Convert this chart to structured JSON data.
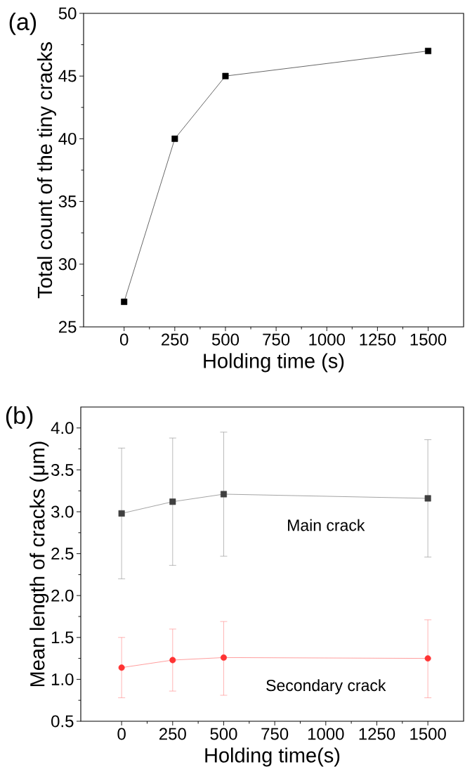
{
  "chart_data": [
    {
      "type": "line",
      "xlabel": "Holding time (s)",
      "ylabel": "Total count of the tiny cracks",
      "annotations": [
        "(a)"
      ],
      "x": [
        0,
        250,
        500,
        1500
      ],
      "marker": "square",
      "line_style": "solid",
      "grid": false,
      "series": [
        {
          "color": "#000000",
          "values": [
            27,
            40,
            45,
            47
          ]
        }
      ],
      "xlim": [
        -200,
        1675
      ],
      "ylim": [
        25,
        50
      ],
      "xticks": [
        0,
        250,
        500,
        750,
        1000,
        1250,
        1500
      ],
      "yticks": [
        25,
        30,
        35,
        40,
        45,
        50
      ]
    },
    {
      "type": "line",
      "xlabel": "Holding time(s)",
      "ylabel": "Mean length of cracks (μm)",
      "annotations": [
        "(b)"
      ],
      "x": [
        0,
        250,
        500,
        1500
      ],
      "line_style": "solid",
      "grid": false,
      "series": [
        {
          "name": "Main crack",
          "color": "#404040",
          "marker": "square",
          "values": [
            2.98,
            3.12,
            3.21,
            3.16
          ],
          "errors": [
            [
              2.2,
              3.76
            ],
            [
              2.36,
              3.88
            ],
            [
              2.47,
              3.95
            ],
            [
              2.46,
              3.86
            ]
          ]
        },
        {
          "name": "Secondary crack",
          "color": "#ff3333",
          "marker": "circle",
          "values": [
            1.14,
            1.23,
            1.26,
            1.25
          ],
          "errors": [
            [
              0.78,
              1.5
            ],
            [
              0.86,
              1.6
            ],
            [
              0.81,
              1.69
            ],
            [
              0.78,
              1.71
            ]
          ]
        }
      ],
      "xlim": [
        -200,
        1675
      ],
      "ylim": [
        0.5,
        4.25
      ],
      "xticks": [
        0,
        250,
        500,
        750,
        1000,
        1250,
        1500
      ],
      "yticks": [
        0.5,
        {
          "value": 1,
          "label": "1.0"
        },
        1.5,
        {
          "value": 2,
          "label": "2.0"
        },
        2.5,
        {
          "value": 3,
          "label": "3.0"
        },
        3.5,
        {
          "value": 4,
          "label": "4.0"
        }
      ]
    }
  ]
}
